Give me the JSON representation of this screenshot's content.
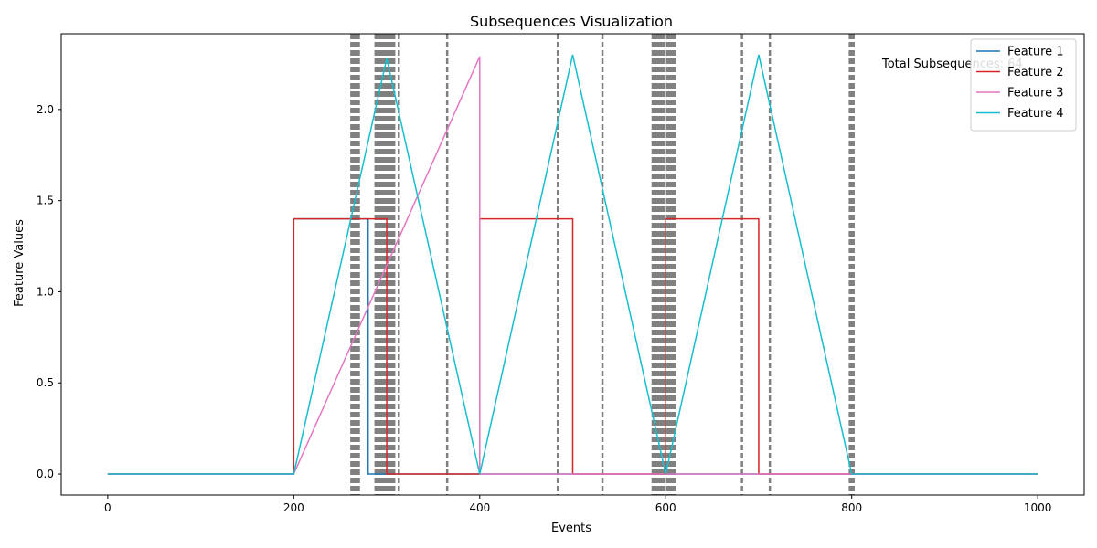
{
  "chart_data": {
    "type": "line",
    "title": "Subsequences Visualization",
    "xlabel": "Events",
    "ylabel": "Feature Values",
    "xlim": [
      -50,
      1050
    ],
    "ylim": [
      -0.115,
      2.415
    ],
    "x_ticks": [
      0,
      200,
      400,
      600,
      800,
      1000
    ],
    "x_tick_labels": [
      "0",
      "200",
      "400",
      "600",
      "800",
      "1000"
    ],
    "y_ticks": [
      0.0,
      0.5,
      1.0,
      1.5,
      2.0
    ],
    "y_tick_labels": [
      "0.0",
      "0.5",
      "1.0",
      "1.5",
      "2.0"
    ],
    "grid": false,
    "legend_position": "top-right",
    "annotation": "Total Subsequences: 64",
    "boundary_color": "#808080",
    "boundaries": [
      262,
      264,
      266,
      268,
      270,
      288,
      290,
      292,
      294,
      296,
      298,
      300,
      302,
      304,
      306,
      308,
      313,
      365,
      484,
      532,
      586,
      588,
      590,
      592,
      594,
      596,
      598,
      602,
      604,
      606,
      608,
      610,
      682,
      712,
      798,
      800,
      802
    ],
    "series": [
      {
        "name": "Feature 1",
        "color": "#1f77b4",
        "points": [
          [
            0,
            0
          ],
          [
            200,
            0
          ],
          [
            200,
            1.4
          ],
          [
            280,
            1.4
          ],
          [
            280,
            0
          ],
          [
            1000,
            0
          ]
        ]
      },
      {
        "name": "Feature 2",
        "color": "#d62728",
        "points": [
          [
            0,
            0
          ],
          [
            200,
            0
          ],
          [
            200,
            1.4
          ],
          [
            300,
            1.4
          ],
          [
            300,
            0
          ],
          [
            400,
            0
          ],
          [
            400,
            1.4
          ],
          [
            500,
            1.4
          ],
          [
            500,
            0
          ],
          [
            600,
            0
          ],
          [
            600,
            1.4
          ],
          [
            700,
            1.4
          ],
          [
            700,
            0
          ],
          [
            1000,
            0
          ]
        ]
      },
      {
        "name": "Feature 3",
        "color": "#e377c2",
        "points": [
          [
            0,
            0
          ],
          [
            200,
            0
          ],
          [
            400,
            2.29
          ],
          [
            400,
            0
          ],
          [
            1000,
            0
          ]
        ]
      },
      {
        "name": "Feature 4",
        "color": "#17becf",
        "points": [
          [
            0,
            0
          ],
          [
            200,
            0
          ],
          [
            300,
            2.28
          ],
          [
            400,
            0
          ],
          [
            500,
            2.3
          ],
          [
            600,
            0
          ],
          [
            700,
            2.3
          ],
          [
            800,
            0
          ],
          [
            1000,
            0
          ]
        ]
      }
    ]
  }
}
